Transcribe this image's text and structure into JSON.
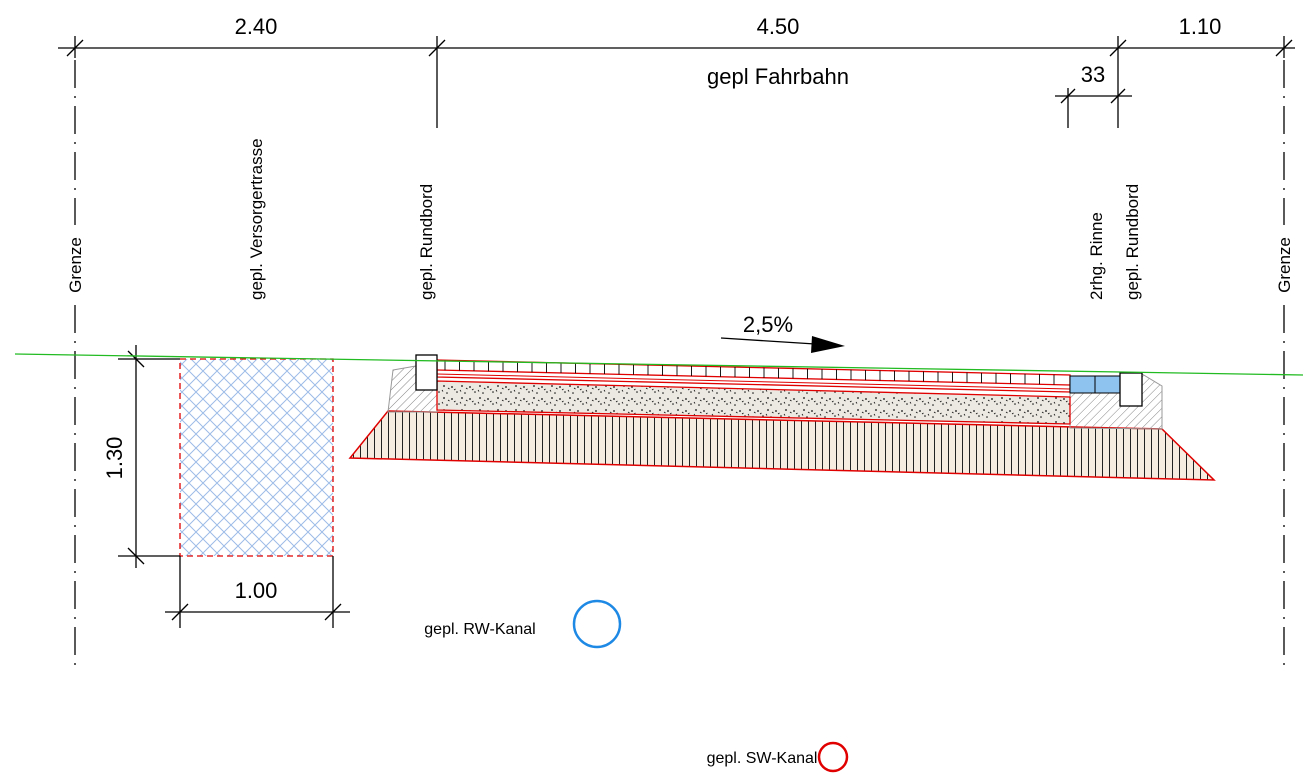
{
  "dimensions": {
    "top_left": "2.40",
    "top_middle": "4.50",
    "top_right": "1.10",
    "gutter_width": "33",
    "trench_height": "1.30",
    "trench_width": "1.00"
  },
  "labels": {
    "fahrbahn": "gepl Fahrbahn",
    "grenze_left": "Grenze",
    "grenze_right": "Grenze",
    "versorgertrasse": "gepl. Versorgertrasse",
    "rundbord_left": "gepl. Rundbord",
    "rinne": "2rhg. Rinne",
    "rundbord_right": "gepl. Rundbord",
    "slope": "2,5%",
    "rw_kanal": "gepl. RW-Kanal",
    "sw_kanal": "gepl. SW-Kanal"
  },
  "colors": {
    "terrain_line": "#22bb22",
    "construction_outline": "#e00000",
    "rw_pipe": "#1e88e5",
    "sw_pipe": "#e00000",
    "trench_hatch": "#8fb4e8",
    "gutter_fill": "#8ec3f0",
    "subbase_fill": "#f6ece0",
    "base_fill": "#ece8e2"
  }
}
